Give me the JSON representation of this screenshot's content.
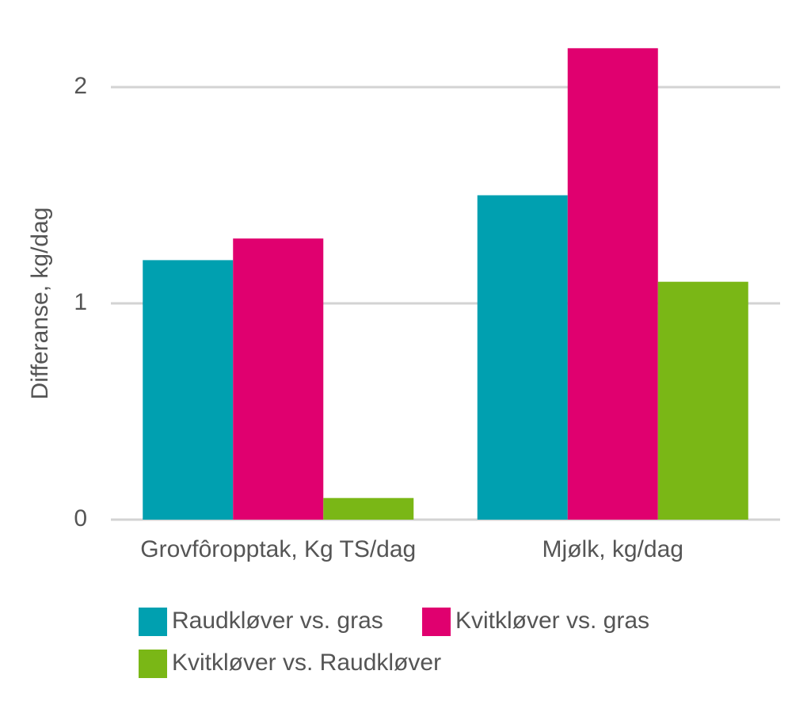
{
  "chart_data": {
    "type": "bar",
    "y_label": "Differanse, kg/dag",
    "categories": [
      "Grovfôropptak, Kg TS/dag",
      "Mjølk, kg/dag"
    ],
    "series": [
      {
        "name": "Raudkløver vs. gras",
        "color": "#00a0b0",
        "values": [
          1.2,
          1.5
        ]
      },
      {
        "name": "Kvitkløver vs. gras",
        "color": "#e0006f",
        "values": [
          1.3,
          2.18
        ]
      },
      {
        "name": "Kvitkløver vs. Raudkløver",
        "color": "#7ab716",
        "values": [
          0.1,
          1.1
        ]
      }
    ],
    "ylim": [
      0,
      2.2
    ],
    "yticks": [
      0,
      1,
      2
    ],
    "grid": true
  }
}
